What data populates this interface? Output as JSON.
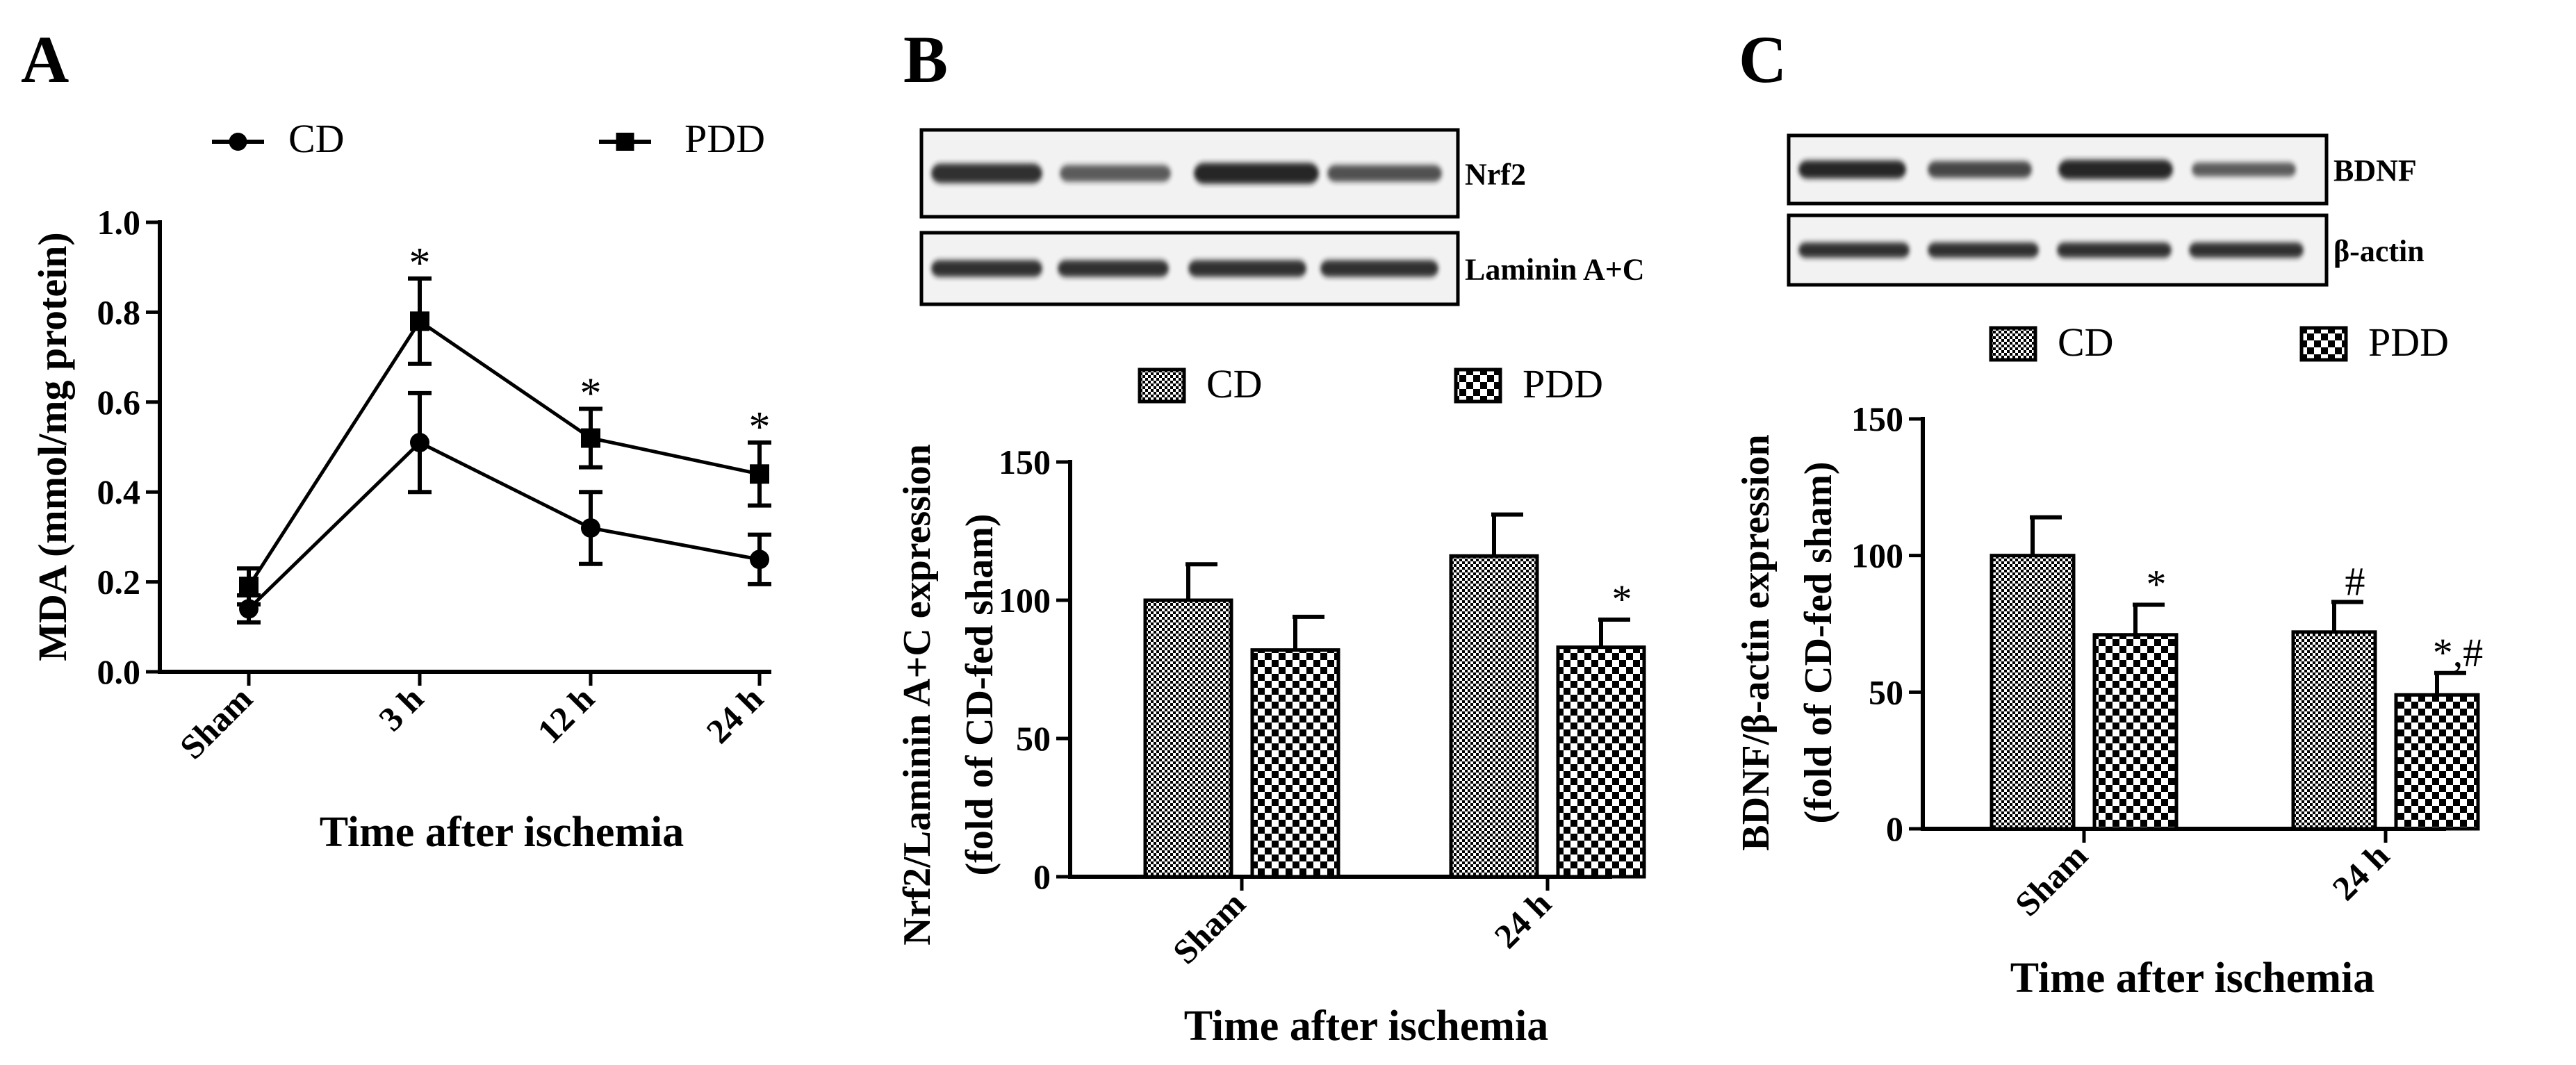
{
  "colors": {
    "ink": "#000000",
    "background": "#ffffff",
    "blot_background": "#f2f2f2",
    "band": "#1e1e1e"
  },
  "chart_data": [
    {
      "panel": "A",
      "type": "line",
      "title": "",
      "xlabel": "Time after ischemia",
      "ylabel": "MDA (mmol/mg protein)",
      "categories": [
        "Sham",
        "3 h",
        "12 h",
        "24 h"
      ],
      "ylim": [
        0,
        1.0
      ],
      "yticks": [
        "0.0",
        "0.2",
        "0.4",
        "0.6",
        "0.8",
        "1.0"
      ],
      "series": [
        {
          "name": "CD",
          "marker": "circle",
          "values": [
            0.14,
            0.51,
            0.32,
            0.25
          ],
          "errors": [
            0.03,
            0.11,
            0.08,
            0.055
          ]
        },
        {
          "name": "PDD",
          "marker": "square",
          "values": [
            0.19,
            0.78,
            0.52,
            0.44
          ],
          "errors": [
            0.04,
            0.095,
            0.065,
            0.07
          ]
        }
      ],
      "annotations": [
        {
          "category": "3 h",
          "series": "PDD",
          "text": "*"
        },
        {
          "category": "12 h",
          "series": "PDD",
          "text": "*"
        },
        {
          "category": "24 h",
          "series": "PDD",
          "text": "*"
        }
      ]
    },
    {
      "panel": "B",
      "type": "bar",
      "blot_labels": [
        "Nrf2",
        "Laminin A+C"
      ],
      "xlabel": "Time after ischemia",
      "ylabel_lines": [
        "Nrf2/Laminin A+C expression",
        "(fold of CD-fed sham)"
      ],
      "categories": [
        "Sham",
        "24 h"
      ],
      "ylim": [
        0,
        150
      ],
      "yticks": [
        "0",
        "50",
        "100",
        "150"
      ],
      "series": [
        {
          "name": "CD",
          "pattern": "fine",
          "values": [
            100,
            116
          ],
          "errors": [
            13,
            15
          ]
        },
        {
          "name": "PDD",
          "pattern": "coarse",
          "values": [
            82,
            83
          ],
          "errors": [
            12,
            10
          ]
        }
      ],
      "annotations": [
        {
          "category": "24 h",
          "series": "PDD",
          "text": "*"
        }
      ]
    },
    {
      "panel": "C",
      "type": "bar",
      "blot_labels": [
        "BDNF",
        "β-actin"
      ],
      "xlabel": "Time after ischemia",
      "ylabel_lines": [
        "BDNF/β-actin expression",
        "(fold of CD-fed sham)"
      ],
      "categories": [
        "Sham",
        "24 h"
      ],
      "ylim": [
        0,
        150
      ],
      "yticks": [
        "0",
        "50",
        "100",
        "150"
      ],
      "series": [
        {
          "name": "CD",
          "pattern": "fine",
          "values": [
            100,
            72
          ],
          "errors": [
            14,
            11
          ]
        },
        {
          "name": "PDD",
          "pattern": "coarse",
          "values": [
            71,
            49
          ],
          "errors": [
            11,
            8
          ]
        }
      ],
      "annotations": [
        {
          "category": "Sham",
          "series": "PDD",
          "text": "*"
        },
        {
          "category": "24 h",
          "series": "CD",
          "text": "#"
        },
        {
          "category": "24 h",
          "series": "PDD",
          "text": "*,#"
        }
      ]
    }
  ]
}
